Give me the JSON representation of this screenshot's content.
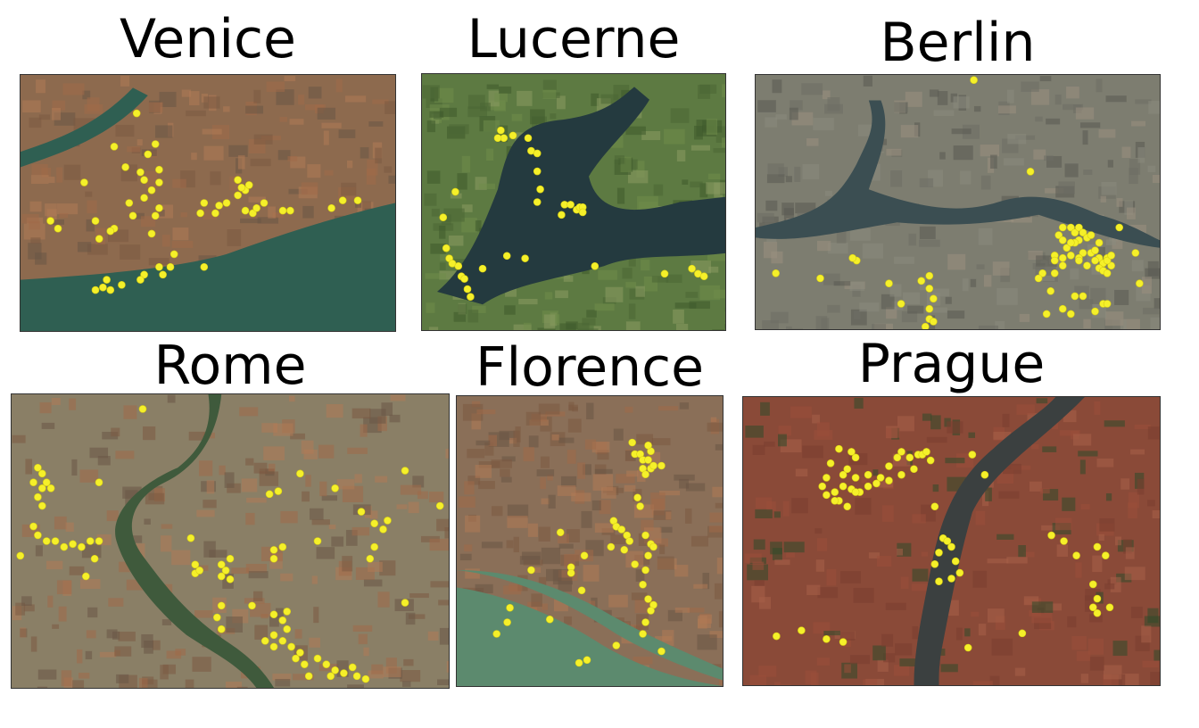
{
  "panels": [
    {
      "id": "venice",
      "title": "Venice",
      "terrain": "city",
      "water": "#2f5f52",
      "land": "#8d6a4e",
      "dots": [
        [
          0.31,
          0.15
        ],
        [
          0.17,
          0.42
        ],
        [
          0.28,
          0.36
        ],
        [
          0.32,
          0.38
        ],
        [
          0.29,
          0.5
        ],
        [
          0.3,
          0.55
        ],
        [
          0.33,
          0.48
        ],
        [
          0.35,
          0.45
        ],
        [
          0.37,
          0.42
        ],
        [
          0.33,
          0.41
        ],
        [
          0.37,
          0.37
        ],
        [
          0.36,
          0.27
        ],
        [
          0.34,
          0.31
        ],
        [
          0.25,
          0.28
        ],
        [
          0.37,
          0.52
        ],
        [
          0.36,
          0.55
        ],
        [
          0.35,
          0.62
        ],
        [
          0.25,
          0.6
        ],
        [
          0.21,
          0.64
        ],
        [
          0.2,
          0.57
        ],
        [
          0.24,
          0.61
        ],
        [
          0.08,
          0.57
        ],
        [
          0.1,
          0.6
        ],
        [
          0.41,
          0.7
        ],
        [
          0.4,
          0.75
        ],
        [
          0.38,
          0.78
        ],
        [
          0.37,
          0.75
        ],
        [
          0.33,
          0.78
        ],
        [
          0.32,
          0.8
        ],
        [
          0.27,
          0.82
        ],
        [
          0.24,
          0.84
        ],
        [
          0.22,
          0.83
        ],
        [
          0.2,
          0.84
        ],
        [
          0.23,
          0.8
        ],
        [
          0.49,
          0.75
        ],
        [
          0.48,
          0.54
        ],
        [
          0.49,
          0.5
        ],
        [
          0.52,
          0.54
        ],
        [
          0.53,
          0.51
        ],
        [
          0.55,
          0.5
        ],
        [
          0.58,
          0.47
        ],
        [
          0.6,
          0.45
        ],
        [
          0.6,
          0.53
        ],
        [
          0.62,
          0.54
        ],
        [
          0.63,
          0.52
        ],
        [
          0.65,
          0.5
        ],
        [
          0.7,
          0.53
        ],
        [
          0.72,
          0.53
        ],
        [
          0.83,
          0.52
        ],
        [
          0.86,
          0.49
        ],
        [
          0.9,
          0.49
        ],
        [
          0.58,
          0.41
        ],
        [
          0.59,
          0.44
        ],
        [
          0.61,
          0.43
        ]
      ]
    },
    {
      "id": "lucerne",
      "title": "Lucerne",
      "terrain": "mountain",
      "water": "#243a3f",
      "land": "#5d7a42",
      "dots": [
        [
          0.26,
          0.22
        ],
        [
          0.27,
          0.25
        ],
        [
          0.25,
          0.25
        ],
        [
          0.3,
          0.24
        ],
        [
          0.35,
          0.25
        ],
        [
          0.36,
          0.3
        ],
        [
          0.38,
          0.31
        ],
        [
          0.38,
          0.38
        ],
        [
          0.39,
          0.45
        ],
        [
          0.38,
          0.5
        ],
        [
          0.11,
          0.46
        ],
        [
          0.07,
          0.56
        ],
        [
          0.08,
          0.68
        ],
        [
          0.09,
          0.72
        ],
        [
          0.1,
          0.74
        ],
        [
          0.12,
          0.75
        ],
        [
          0.13,
          0.79
        ],
        [
          0.14,
          0.8
        ],
        [
          0.15,
          0.84
        ],
        [
          0.16,
          0.87
        ],
        [
          0.2,
          0.76
        ],
        [
          0.28,
          0.71
        ],
        [
          0.34,
          0.72
        ],
        [
          0.46,
          0.55
        ],
        [
          0.47,
          0.51
        ],
        [
          0.49,
          0.51
        ],
        [
          0.51,
          0.53
        ],
        [
          0.52,
          0.52
        ],
        [
          0.53,
          0.52
        ],
        [
          0.53,
          0.54
        ],
        [
          0.57,
          0.75
        ],
        [
          0.8,
          0.78
        ],
        [
          0.89,
          0.76
        ],
        [
          0.91,
          0.78
        ],
        [
          0.93,
          0.79
        ]
      ]
    },
    {
      "id": "berlin",
      "title": "Berlin",
      "terrain": "city",
      "water": "#3b4e52",
      "land": "#7d7d70",
      "dots": [
        [
          0.54,
          0.02
        ],
        [
          0.68,
          0.38
        ],
        [
          0.76,
          0.6
        ],
        [
          0.78,
          0.6
        ],
        [
          0.79,
          0.62
        ],
        [
          0.8,
          0.6
        ],
        [
          0.81,
          0.62
        ],
        [
          0.82,
          0.64
        ],
        [
          0.8,
          0.65
        ],
        [
          0.79,
          0.66
        ],
        [
          0.75,
          0.63
        ],
        [
          0.76,
          0.65
        ],
        [
          0.77,
          0.68
        ],
        [
          0.78,
          0.66
        ],
        [
          0.81,
          0.7
        ],
        [
          0.83,
          0.7
        ],
        [
          0.85,
          0.72
        ],
        [
          0.84,
          0.73
        ],
        [
          0.86,
          0.74
        ],
        [
          0.88,
          0.75
        ],
        [
          0.87,
          0.72
        ],
        [
          0.85,
          0.66
        ],
        [
          0.84,
          0.69
        ],
        [
          0.8,
          0.72
        ],
        [
          0.78,
          0.71
        ],
        [
          0.76,
          0.72
        ],
        [
          0.74,
          0.71
        ],
        [
          0.8,
          0.73
        ],
        [
          0.82,
          0.75
        ],
        [
          0.74,
          0.73
        ],
        [
          0.76,
          0.75
        ],
        [
          0.83,
          0.63
        ],
        [
          0.85,
          0.76
        ],
        [
          0.87,
          0.73
        ],
        [
          0.86,
          0.77
        ],
        [
          0.88,
          0.71
        ],
        [
          0.9,
          0.6
        ],
        [
          0.87,
          0.78
        ],
        [
          0.74,
          0.78
        ],
        [
          0.71,
          0.78
        ],
        [
          0.7,
          0.8
        ],
        [
          0.25,
          0.73
        ],
        [
          0.24,
          0.72
        ],
        [
          0.05,
          0.78
        ],
        [
          0.16,
          0.8
        ],
        [
          0.33,
          0.82
        ],
        [
          0.41,
          0.81
        ],
        [
          0.43,
          0.79
        ],
        [
          0.43,
          0.84
        ],
        [
          0.44,
          0.88
        ],
        [
          0.43,
          0.92
        ],
        [
          0.43,
          0.96
        ],
        [
          0.44,
          0.97
        ],
        [
          0.36,
          0.9
        ],
        [
          0.42,
          0.99
        ],
        [
          0.73,
          0.85
        ],
        [
          0.79,
          0.87
        ],
        [
          0.81,
          0.87
        ],
        [
          0.86,
          0.9
        ],
        [
          0.94,
          0.7
        ],
        [
          0.95,
          0.82
        ],
        [
          0.72,
          0.94
        ],
        [
          0.78,
          0.94
        ],
        [
          0.84,
          0.93
        ],
        [
          0.87,
          0.9
        ],
        [
          0.76,
          0.92
        ]
      ]
    },
    {
      "id": "rome",
      "title": "Rome",
      "terrain": "city",
      "water": "#3f5a3c",
      "land": "#8a7f66",
      "dots": [
        [
          0.3,
          0.05
        ],
        [
          0.06,
          0.25
        ],
        [
          0.07,
          0.27
        ],
        [
          0.08,
          0.3
        ],
        [
          0.07,
          0.32
        ],
        [
          0.09,
          0.32
        ],
        [
          0.05,
          0.3
        ],
        [
          0.06,
          0.35
        ],
        [
          0.07,
          0.38
        ],
        [
          0.05,
          0.45
        ],
        [
          0.06,
          0.48
        ],
        [
          0.08,
          0.5
        ],
        [
          0.1,
          0.5
        ],
        [
          0.12,
          0.52
        ],
        [
          0.14,
          0.51
        ],
        [
          0.16,
          0.52
        ],
        [
          0.18,
          0.5
        ],
        [
          0.2,
          0.5
        ],
        [
          0.19,
          0.56
        ],
        [
          0.17,
          0.62
        ],
        [
          0.02,
          0.55
        ],
        [
          0.2,
          0.3
        ],
        [
          0.41,
          0.49
        ],
        [
          0.42,
          0.58
        ],
        [
          0.42,
          0.61
        ],
        [
          0.43,
          0.6
        ],
        [
          0.5,
          0.56
        ],
        [
          0.48,
          0.58
        ],
        [
          0.49,
          0.6
        ],
        [
          0.48,
          0.62
        ],
        [
          0.5,
          0.63
        ],
        [
          0.59,
          0.34
        ],
        [
          0.61,
          0.33
        ],
        [
          0.66,
          0.27
        ],
        [
          0.74,
          0.32
        ],
        [
          0.8,
          0.4
        ],
        [
          0.83,
          0.44
        ],
        [
          0.86,
          0.43
        ],
        [
          0.85,
          0.46
        ],
        [
          0.9,
          0.26
        ],
        [
          0.98,
          0.38
        ],
        [
          0.83,
          0.52
        ],
        [
          0.82,
          0.56
        ],
        [
          0.7,
          0.5
        ],
        [
          0.62,
          0.52
        ],
        [
          0.6,
          0.56
        ],
        [
          0.6,
          0.53
        ],
        [
          0.55,
          0.72
        ],
        [
          0.48,
          0.72
        ],
        [
          0.47,
          0.76
        ],
        [
          0.48,
          0.8
        ],
        [
          0.6,
          0.75
        ],
        [
          0.62,
          0.77
        ],
        [
          0.63,
          0.8
        ],
        [
          0.6,
          0.82
        ],
        [
          0.58,
          0.84
        ],
        [
          0.6,
          0.86
        ],
        [
          0.62,
          0.84
        ],
        [
          0.64,
          0.86
        ],
        [
          0.66,
          0.88
        ],
        [
          0.65,
          0.9
        ],
        [
          0.67,
          0.92
        ],
        [
          0.7,
          0.9
        ],
        [
          0.72,
          0.92
        ],
        [
          0.74,
          0.94
        ],
        [
          0.76,
          0.95
        ],
        [
          0.78,
          0.93
        ],
        [
          0.79,
          0.96
        ],
        [
          0.81,
          0.97
        ],
        [
          0.73,
          0.96
        ],
        [
          0.68,
          0.96
        ],
        [
          0.63,
          0.74
        ],
        [
          0.9,
          0.71
        ]
      ]
    },
    {
      "id": "florence",
      "title": "Florence",
      "terrain": "city",
      "water": "#5c8a6e",
      "land": "#8a6f58",
      "dots": [
        [
          0.66,
          0.16
        ],
        [
          0.67,
          0.2
        ],
        [
          0.69,
          0.2
        ],
        [
          0.7,
          0.22
        ],
        [
          0.7,
          0.25
        ],
        [
          0.72,
          0.22
        ],
        [
          0.73,
          0.25
        ],
        [
          0.71,
          0.27
        ],
        [
          0.73,
          0.19
        ],
        [
          0.72,
          0.17
        ],
        [
          0.74,
          0.24
        ],
        [
          0.77,
          0.24
        ],
        [
          0.68,
          0.35
        ],
        [
          0.69,
          0.38
        ],
        [
          0.59,
          0.43
        ],
        [
          0.6,
          0.45
        ],
        [
          0.62,
          0.46
        ],
        [
          0.64,
          0.48
        ],
        [
          0.65,
          0.5
        ],
        [
          0.63,
          0.53
        ],
        [
          0.58,
          0.52
        ],
        [
          0.67,
          0.58
        ],
        [
          0.71,
          0.48
        ],
        [
          0.73,
          0.51
        ],
        [
          0.74,
          0.52
        ],
        [
          0.72,
          0.55
        ],
        [
          0.71,
          0.6
        ],
        [
          0.7,
          0.65
        ],
        [
          0.72,
          0.7
        ],
        [
          0.74,
          0.72
        ],
        [
          0.73,
          0.74
        ],
        [
          0.71,
          0.78
        ],
        [
          0.7,
          0.82
        ],
        [
          0.6,
          0.86
        ],
        [
          0.49,
          0.91
        ],
        [
          0.46,
          0.92
        ],
        [
          0.43,
          0.59
        ],
        [
          0.43,
          0.61
        ],
        [
          0.28,
          0.6
        ],
        [
          0.2,
          0.73
        ],
        [
          0.19,
          0.78
        ],
        [
          0.15,
          0.82
        ],
        [
          0.35,
          0.77
        ],
        [
          0.39,
          0.47
        ],
        [
          0.77,
          0.88
        ],
        [
          0.48,
          0.55
        ],
        [
          0.47,
          0.67
        ]
      ]
    },
    {
      "id": "prague",
      "title": "Prague",
      "terrain": "mixed",
      "water": "#3b4040",
      "land": "#8a4a38",
      "dots": [
        [
          0.23,
          0.18
        ],
        [
          0.26,
          0.19
        ],
        [
          0.27,
          0.21
        ],
        [
          0.21,
          0.23
        ],
        [
          0.25,
          0.25
        ],
        [
          0.24,
          0.27
        ],
        [
          0.27,
          0.28
        ],
        [
          0.3,
          0.27
        ],
        [
          0.33,
          0.28
        ],
        [
          0.35,
          0.24
        ],
        [
          0.37,
          0.21
        ],
        [
          0.38,
          0.19
        ],
        [
          0.4,
          0.21
        ],
        [
          0.42,
          0.2
        ],
        [
          0.43,
          0.2
        ],
        [
          0.44,
          0.19
        ],
        [
          0.45,
          0.22
        ],
        [
          0.41,
          0.25
        ],
        [
          0.38,
          0.27
        ],
        [
          0.35,
          0.29
        ],
        [
          0.32,
          0.3
        ],
        [
          0.3,
          0.31
        ],
        [
          0.28,
          0.33
        ],
        [
          0.26,
          0.32
        ],
        [
          0.24,
          0.31
        ],
        [
          0.22,
          0.33
        ],
        [
          0.2,
          0.28
        ],
        [
          0.19,
          0.31
        ],
        [
          0.2,
          0.34
        ],
        [
          0.23,
          0.36
        ],
        [
          0.25,
          0.38
        ],
        [
          0.27,
          0.33
        ],
        [
          0.22,
          0.36
        ],
        [
          0.46,
          0.38
        ],
        [
          0.55,
          0.2
        ],
        [
          0.58,
          0.27
        ],
        [
          0.48,
          0.49
        ],
        [
          0.49,
          0.5
        ],
        [
          0.5,
          0.52
        ],
        [
          0.47,
          0.54
        ],
        [
          0.51,
          0.57
        ],
        [
          0.52,
          0.61
        ],
        [
          0.5,
          0.63
        ],
        [
          0.46,
          0.58
        ],
        [
          0.47,
          0.64
        ],
        [
          0.74,
          0.48
        ],
        [
          0.77,
          0.5
        ],
        [
          0.8,
          0.55
        ],
        [
          0.85,
          0.52
        ],
        [
          0.87,
          0.55
        ],
        [
          0.84,
          0.65
        ],
        [
          0.85,
          0.7
        ],
        [
          0.84,
          0.73
        ],
        [
          0.85,
          0.75
        ],
        [
          0.88,
          0.73
        ],
        [
          0.67,
          0.82
        ],
        [
          0.54,
          0.87
        ],
        [
          0.2,
          0.84
        ],
        [
          0.24,
          0.85
        ],
        [
          0.14,
          0.81
        ],
        [
          0.08,
          0.83
        ]
      ]
    }
  ]
}
